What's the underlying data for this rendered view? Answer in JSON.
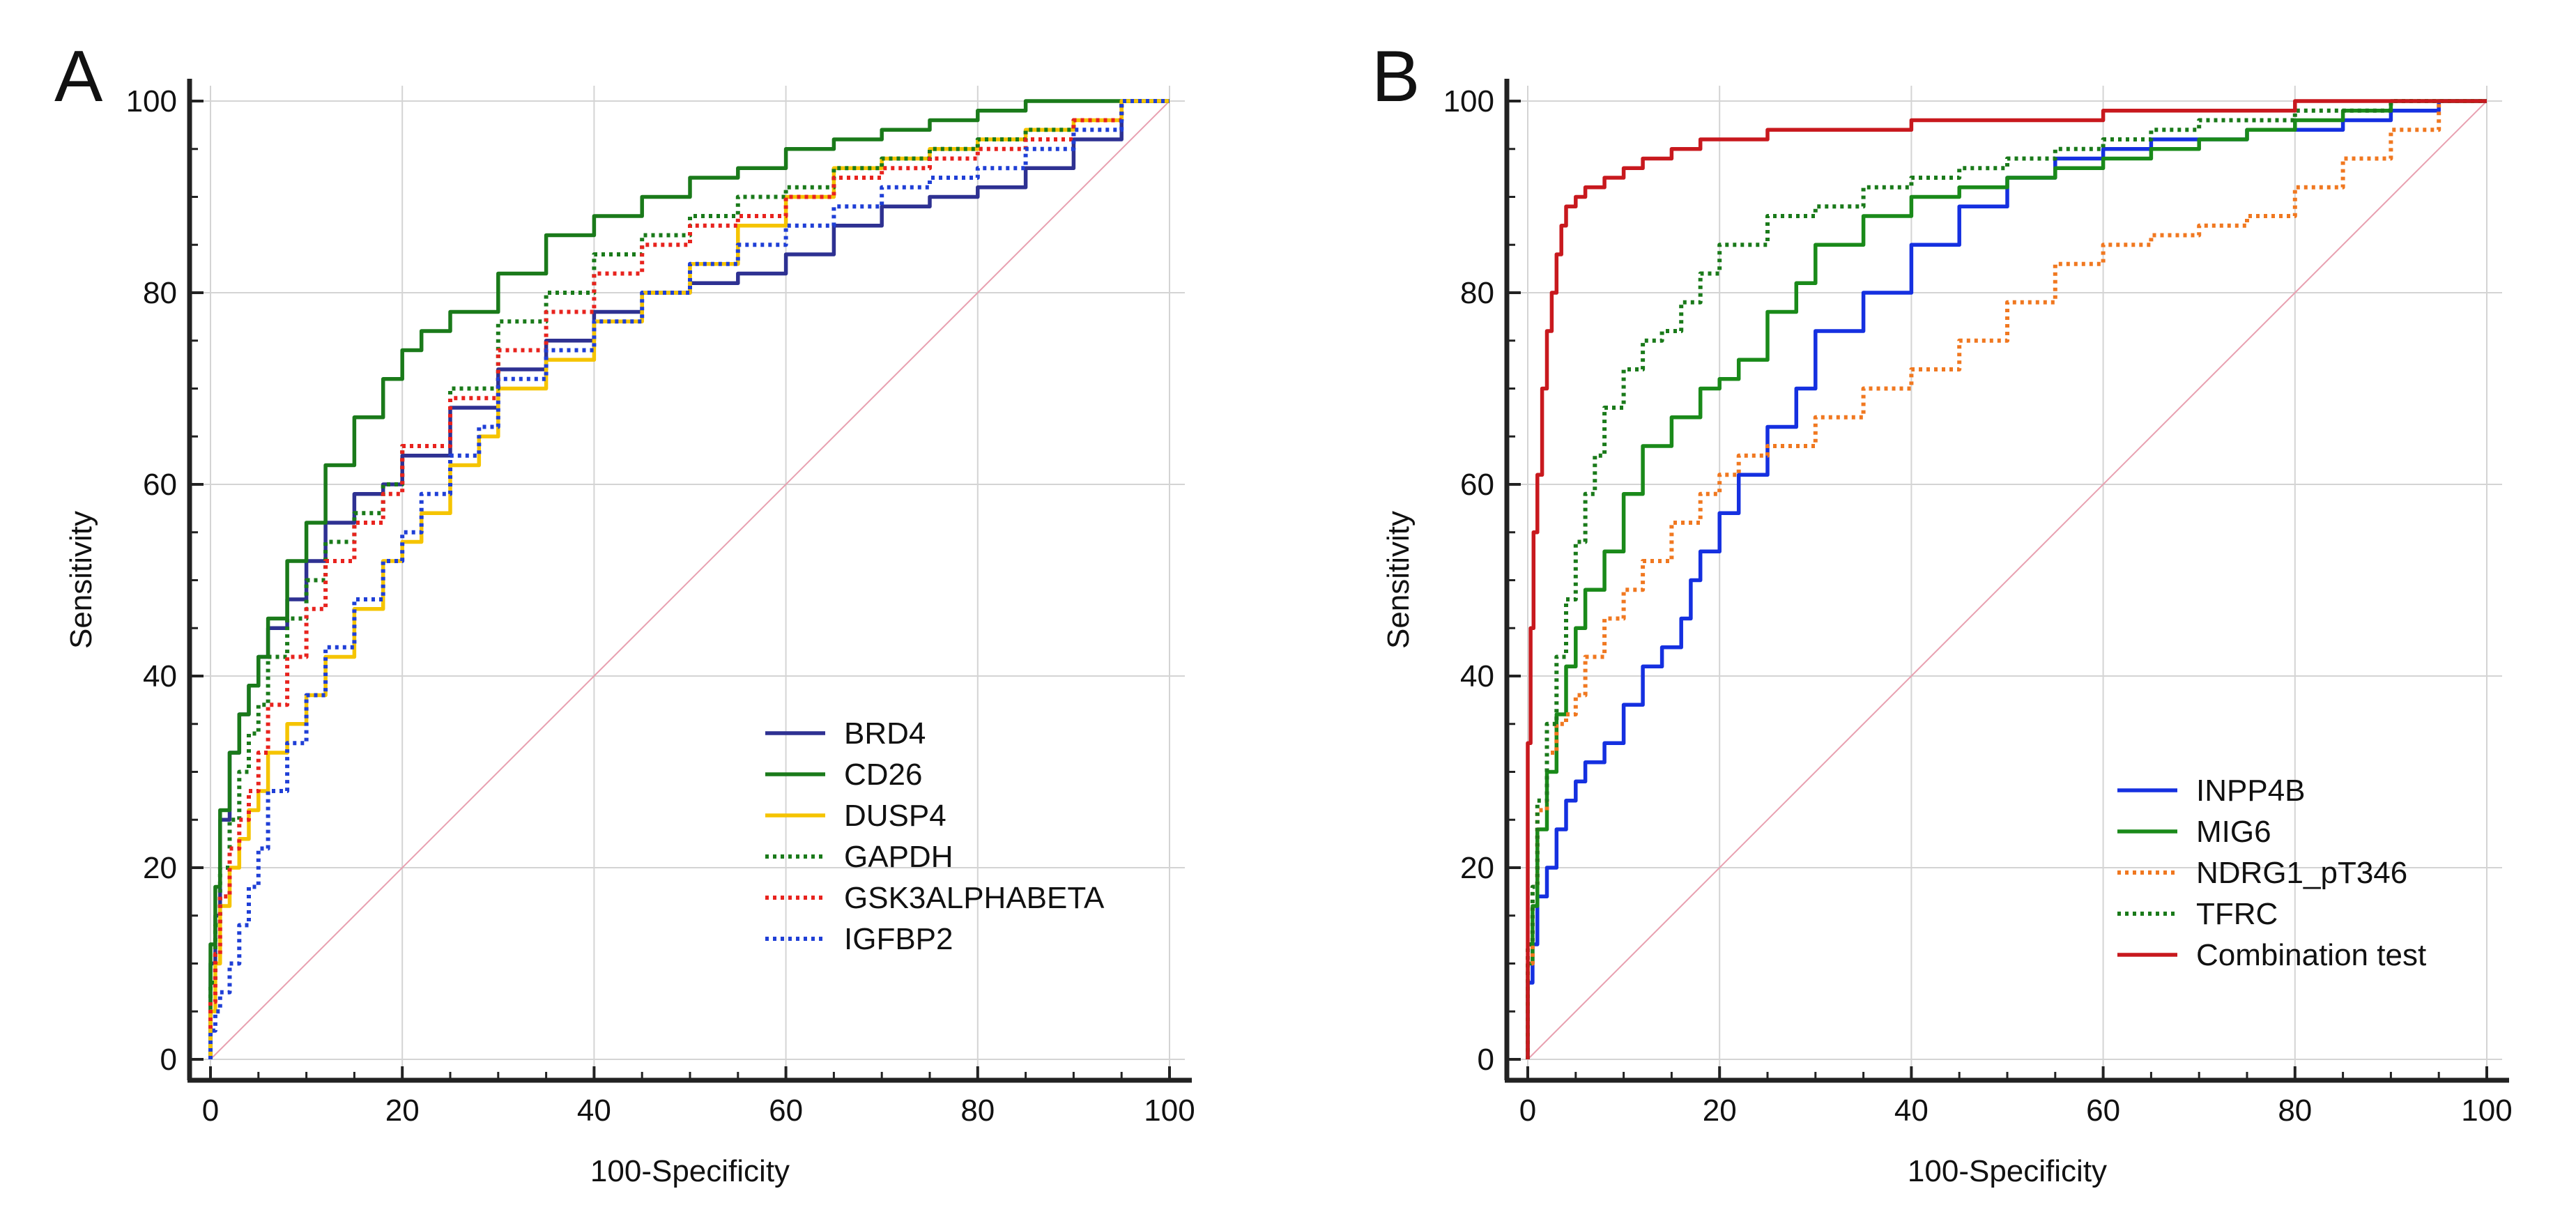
{
  "figure": {
    "panels": [
      "A",
      "B"
    ]
  },
  "chart_data": [
    {
      "panel": "A",
      "type": "line",
      "title": "",
      "xlabel": "100-Specificity",
      "ylabel": "Sensitivity",
      "xlim": [
        0,
        100
      ],
      "ylim": [
        0,
        100
      ],
      "xticks": [
        0,
        20,
        40,
        60,
        80,
        100
      ],
      "yticks": [
        0,
        20,
        40,
        60,
        80,
        100
      ],
      "grid": true,
      "legend_position": "bottom-right",
      "reference_line": {
        "x": [
          0,
          100
        ],
        "y": [
          0,
          100
        ],
        "color": "#e8a0b0"
      },
      "series": [
        {
          "name": "BRD4",
          "color": "#2e3192",
          "style": "solid",
          "x": [
            0,
            0.5,
            1,
            2,
            3,
            4,
            5,
            6,
            8,
            10,
            12,
            15,
            18,
            20,
            25,
            30,
            35,
            40,
            45,
            50,
            55,
            60,
            65,
            70,
            75,
            80,
            85,
            90,
            95,
            100
          ],
          "y": [
            0,
            10,
            15,
            25,
            32,
            36,
            39,
            42,
            45,
            48,
            52,
            56,
            59,
            60,
            63,
            68,
            72,
            75,
            78,
            80,
            81,
            82,
            84,
            87,
            89,
            90,
            91,
            93,
            96,
            100
          ]
        },
        {
          "name": "CD26",
          "color": "#1a7a1a",
          "style": "solid",
          "x": [
            0,
            0.5,
            1,
            2,
            3,
            4,
            5,
            6,
            8,
            10,
            12,
            15,
            18,
            20,
            22,
            25,
            30,
            35,
            40,
            45,
            50,
            55,
            60,
            65,
            70,
            75,
            80,
            85,
            90,
            95,
            100
          ],
          "y": [
            0,
            12,
            18,
            26,
            32,
            36,
            39,
            42,
            46,
            52,
            56,
            62,
            67,
            71,
            74,
            76,
            78,
            82,
            86,
            88,
            90,
            92,
            93,
            95,
            96,
            97,
            98,
            99,
            100,
            100,
            100
          ]
        },
        {
          "name": "DUSP4",
          "color": "#f5c400",
          "style": "solid",
          "x": [
            0,
            0.5,
            1,
            2,
            3,
            4,
            5,
            6,
            8,
            10,
            12,
            15,
            18,
            20,
            22,
            25,
            28,
            30,
            35,
            40,
            45,
            50,
            55,
            60,
            65,
            70,
            75,
            80,
            85,
            90,
            95,
            100
          ],
          "y": [
            0,
            5,
            10,
            16,
            20,
            23,
            26,
            28,
            32,
            35,
            38,
            42,
            47,
            52,
            54,
            57,
            62,
            65,
            70,
            73,
            77,
            80,
            83,
            87,
            90,
            93,
            94,
            95,
            96,
            97,
            98,
            100
          ]
        },
        {
          "name": "GAPDH",
          "color": "#1a7a1a",
          "style": "dotted",
          "x": [
            0,
            0.5,
            1,
            2,
            3,
            4,
            5,
            6,
            8,
            10,
            12,
            15,
            18,
            20,
            25,
            30,
            35,
            40,
            45,
            50,
            55,
            60,
            65,
            70,
            75,
            80,
            85,
            90,
            95,
            100
          ],
          "y": [
            0,
            8,
            14,
            20,
            25,
            30,
            34,
            37,
            42,
            46,
            50,
            54,
            57,
            60,
            64,
            70,
            77,
            80,
            84,
            86,
            88,
            90,
            91,
            93,
            94,
            95,
            96,
            97,
            98,
            100
          ]
        },
        {
          "name": "GSK3ALPHABETA",
          "color": "#e8231e",
          "style": "dotted",
          "x": [
            0,
            0.5,
            1,
            2,
            3,
            4,
            5,
            6,
            8,
            10,
            12,
            15,
            18,
            20,
            25,
            30,
            35,
            40,
            45,
            50,
            55,
            60,
            65,
            70,
            75,
            80,
            85,
            90,
            95,
            100
          ],
          "y": [
            0,
            6,
            11,
            17,
            22,
            25,
            28,
            32,
            37,
            42,
            47,
            52,
            56,
            59,
            64,
            69,
            74,
            78,
            82,
            85,
            87,
            88,
            90,
            92,
            93,
            94,
            95,
            96,
            98,
            100
          ]
        },
        {
          "name": "IGFBP2",
          "color": "#1f3fd6",
          "style": "dotted",
          "x": [
            0,
            0.5,
            1,
            2,
            3,
            4,
            5,
            6,
            8,
            10,
            12,
            15,
            18,
            20,
            22,
            25,
            28,
            30,
            35,
            40,
            45,
            50,
            55,
            60,
            65,
            70,
            75,
            80,
            85,
            90,
            95,
            100
          ],
          "y": [
            0,
            3,
            5,
            7,
            10,
            14,
            18,
            22,
            28,
            33,
            38,
            43,
            48,
            52,
            55,
            59,
            63,
            66,
            71,
            74,
            77,
            80,
            83,
            85,
            87,
            89,
            91,
            92,
            93,
            95,
            97,
            100
          ]
        }
      ]
    },
    {
      "panel": "B",
      "type": "line",
      "title": "",
      "xlabel": "100-Specificity",
      "ylabel": "Sensitivity",
      "xlim": [
        0,
        100
      ],
      "ylim": [
        0,
        100
      ],
      "xticks": [
        0,
        20,
        40,
        60,
        80,
        100
      ],
      "yticks": [
        0,
        20,
        40,
        60,
        80,
        100
      ],
      "grid": true,
      "legend_position": "bottom-right",
      "reference_line": {
        "x": [
          0,
          100
        ],
        "y": [
          0,
          100
        ],
        "color": "#e8a0b0"
      },
      "series": [
        {
          "name": "INPP4B",
          "color": "#1530e0",
          "style": "solid",
          "x": [
            0,
            0.5,
            1,
            2,
            3,
            4,
            5,
            6,
            8,
            10,
            12,
            14,
            16,
            17,
            18,
            20,
            22,
            25,
            28,
            30,
            35,
            40,
            45,
            50,
            55,
            60,
            65,
            70,
            75,
            80,
            85,
            90,
            95,
            100
          ],
          "y": [
            0,
            8,
            12,
            17,
            20,
            24,
            27,
            29,
            31,
            33,
            37,
            41,
            43,
            46,
            50,
            53,
            57,
            61,
            66,
            70,
            76,
            80,
            85,
            89,
            92,
            94,
            95,
            96,
            96,
            97,
            97,
            98,
            99,
            100
          ]
        },
        {
          "name": "MIG6",
          "color": "#1a8a1a",
          "style": "solid",
          "x": [
            0,
            0.5,
            1,
            2,
            3,
            4,
            5,
            6,
            8,
            10,
            12,
            15,
            18,
            20,
            22,
            25,
            28,
            30,
            35,
            40,
            45,
            50,
            55,
            60,
            65,
            70,
            75,
            80,
            85,
            90,
            95,
            100
          ],
          "y": [
            0,
            10,
            16,
            24,
            30,
            36,
            41,
            45,
            49,
            53,
            59,
            64,
            67,
            70,
            71,
            73,
            78,
            81,
            85,
            88,
            90,
            91,
            92,
            93,
            94,
            95,
            96,
            97,
            98,
            99,
            100,
            100
          ]
        },
        {
          "name": "NDRG1_pT346",
          "color": "#f07820",
          "style": "dotted",
          "x": [
            0,
            0.5,
            1,
            2,
            3,
            4,
            5,
            6,
            8,
            10,
            12,
            15,
            18,
            20,
            22,
            25,
            30,
            35,
            40,
            45,
            50,
            55,
            60,
            65,
            70,
            75,
            80,
            85,
            90,
            95,
            100
          ],
          "y": [
            0,
            10,
            18,
            26,
            32,
            35,
            36,
            38,
            42,
            46,
            49,
            52,
            56,
            59,
            61,
            63,
            64,
            67,
            70,
            72,
            75,
            79,
            83,
            85,
            86,
            87,
            88,
            91,
            94,
            97,
            100
          ]
        },
        {
          "name": "TFRC",
          "color": "#1a7a1a",
          "style": "dotted",
          "x": [
            0,
            0.5,
            1,
            2,
            3,
            4,
            5,
            6,
            7,
            8,
            10,
            12,
            14,
            16,
            18,
            20,
            25,
            30,
            35,
            40,
            45,
            50,
            55,
            60,
            65,
            70,
            75,
            80,
            85,
            90,
            95,
            100
          ],
          "y": [
            0,
            12,
            18,
            27,
            35,
            42,
            48,
            54,
            59,
            63,
            68,
            72,
            75,
            76,
            79,
            82,
            85,
            88,
            89,
            91,
            92,
            93,
            94,
            95,
            96,
            97,
            98,
            98,
            99,
            99,
            100,
            100
          ]
        },
        {
          "name": "Combination test",
          "color": "#c8191e",
          "style": "solid",
          "x": [
            0,
            0.3,
            0.6,
            1,
            1.5,
            2,
            2.5,
            3,
            3.5,
            4,
            5,
            6,
            7,
            8,
            10,
            12,
            15,
            18,
            20,
            25,
            30,
            40,
            50,
            60,
            70,
            80,
            90,
            100
          ],
          "y": [
            0,
            33,
            45,
            55,
            61,
            70,
            76,
            80,
            84,
            87,
            89,
            90,
            91,
            91,
            92,
            93,
            94,
            95,
            96,
            96,
            97,
            97,
            98,
            98,
            99,
            99,
            100,
            100
          ]
        }
      ]
    }
  ]
}
